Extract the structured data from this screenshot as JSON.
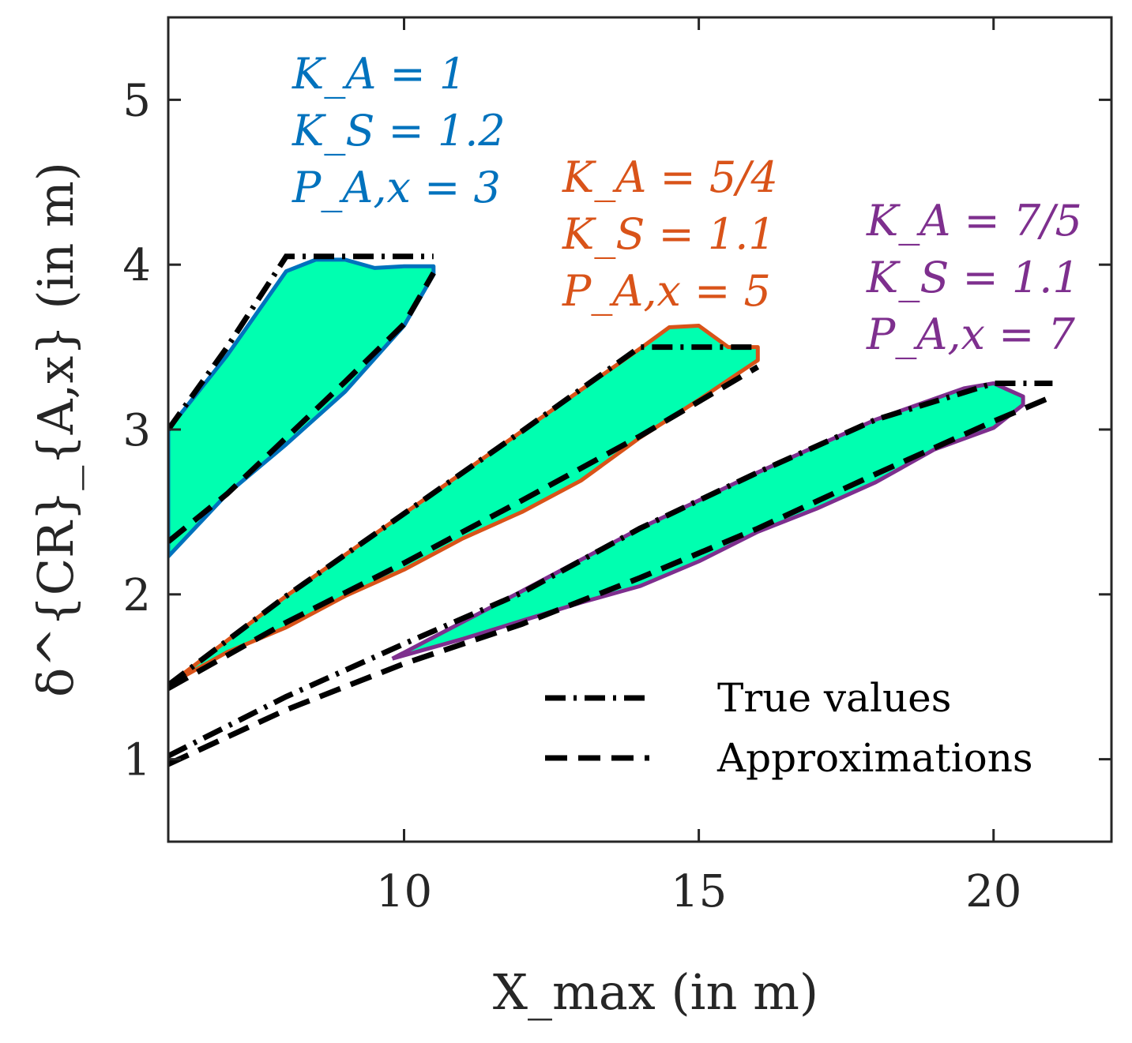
{
  "chart_data": {
    "type": "line",
    "xlabel": "X_max (in m)",
    "ylabel": "δ^{CR}_{A,x} (in m)",
    "xlim": [
      6,
      22
    ],
    "ylim": [
      0.5,
      5.5
    ],
    "x_ticks": [
      "10",
      "15",
      "20"
    ],
    "y_ticks": [
      "1",
      "2",
      "3",
      "4",
      "5"
    ],
    "fill_color": "#00FFB0",
    "legend": {
      "position": "bottom-right",
      "entries": [
        {
          "name": "True values",
          "style": "dash-dot"
        },
        {
          "name": "Approximations",
          "style": "dashed"
        }
      ]
    },
    "series": [
      {
        "name": "K_A = 1, K_S = 1.2, P_A,x = 3",
        "color": "#0072BD",
        "annotation": [
          "K_A = 1",
          "K_S = 1.2",
          "P_A,x = 3"
        ],
        "region_upper": [
          [
            6,
            3.0
          ],
          [
            7,
            3.45
          ],
          [
            8,
            3.96
          ],
          [
            8.5,
            4.03
          ],
          [
            9,
            4.03
          ],
          [
            9.5,
            3.98
          ],
          [
            10,
            3.99
          ],
          [
            10.5,
            3.99
          ]
        ],
        "region_lower": [
          [
            10.5,
            3.94
          ],
          [
            10,
            3.63
          ],
          [
            9,
            3.23
          ],
          [
            8,
            2.91
          ],
          [
            7,
            2.61
          ],
          [
            6,
            2.23
          ]
        ],
        "true_values": [
          [
            6,
            3.0
          ],
          [
            7,
            3.5
          ],
          [
            8,
            4.05
          ],
          [
            10.5,
            4.05
          ]
        ],
        "approximations": [
          [
            6,
            2.32
          ],
          [
            7,
            2.61
          ],
          [
            8,
            2.95
          ],
          [
            9,
            3.29
          ],
          [
            10,
            3.64
          ],
          [
            10.5,
            3.95
          ]
        ]
      },
      {
        "name": "K_A = 5/4, K_S = 1.1, P_A,x = 5",
        "color": "#D95319",
        "annotation": [
          "K_A = 5/4",
          "K_S = 1.1",
          "P_A,x = 5"
        ],
        "region_upper": [
          [
            6,
            1.45
          ],
          [
            8,
            1.99
          ],
          [
            10,
            2.49
          ],
          [
            12,
            2.99
          ],
          [
            14,
            3.49
          ],
          [
            14.5,
            3.62
          ],
          [
            15,
            3.63
          ],
          [
            15.5,
            3.5
          ],
          [
            16,
            3.5
          ]
        ],
        "region_lower": [
          [
            16,
            3.42
          ],
          [
            15,
            3.18
          ],
          [
            14,
            2.95
          ],
          [
            13,
            2.69
          ],
          [
            12,
            2.5
          ],
          [
            11,
            2.34
          ],
          [
            10,
            2.15
          ],
          [
            9,
            1.99
          ],
          [
            8,
            1.8
          ],
          [
            7,
            1.65
          ],
          [
            6,
            1.45
          ]
        ],
        "true_values": [
          [
            6,
            1.45
          ],
          [
            8,
            1.99
          ],
          [
            10,
            2.49
          ],
          [
            12,
            2.99
          ],
          [
            14,
            3.5
          ],
          [
            16,
            3.5
          ]
        ],
        "approximations": [
          [
            6,
            1.43
          ],
          [
            8,
            1.83
          ],
          [
            10,
            2.19
          ],
          [
            12,
            2.57
          ],
          [
            14,
            2.96
          ],
          [
            16,
            3.38
          ]
        ]
      },
      {
        "name": "K_A = 7/5, K_S = 1.1, P_A,x = 7",
        "color": "#7E2F8E",
        "annotation": [
          "K_A = 7/5",
          "K_S = 1.1",
          "P_A,x = 7"
        ],
        "region_upper": [
          [
            9.8,
            1.61
          ],
          [
            12,
            2.02
          ],
          [
            14,
            2.4
          ],
          [
            16,
            2.74
          ],
          [
            18,
            3.06
          ],
          [
            19.5,
            3.25
          ],
          [
            20,
            3.28
          ],
          [
            20.5,
            3.2
          ]
        ],
        "region_lower": [
          [
            20.5,
            3.15
          ],
          [
            20,
            3.01
          ],
          [
            19,
            2.88
          ],
          [
            18,
            2.68
          ],
          [
            17,
            2.52
          ],
          [
            16,
            2.38
          ],
          [
            15,
            2.2
          ],
          [
            14,
            2.05
          ],
          [
            13,
            1.95
          ],
          [
            12,
            1.84
          ],
          [
            11,
            1.73
          ],
          [
            9.8,
            1.61
          ]
        ],
        "true_values": [
          [
            6,
            1.02
          ],
          [
            8,
            1.38
          ],
          [
            10,
            1.7
          ],
          [
            12,
            2.01
          ],
          [
            14,
            2.4
          ],
          [
            16,
            2.74
          ],
          [
            18,
            3.06
          ],
          [
            20,
            3.28
          ],
          [
            21,
            3.28
          ]
        ],
        "approximations": [
          [
            6,
            0.97
          ],
          [
            8,
            1.3
          ],
          [
            10,
            1.58
          ],
          [
            12,
            1.82
          ],
          [
            14,
            2.1
          ],
          [
            16,
            2.4
          ],
          [
            18,
            2.73
          ],
          [
            20,
            3.05
          ],
          [
            21,
            3.2
          ]
        ]
      }
    ]
  }
}
